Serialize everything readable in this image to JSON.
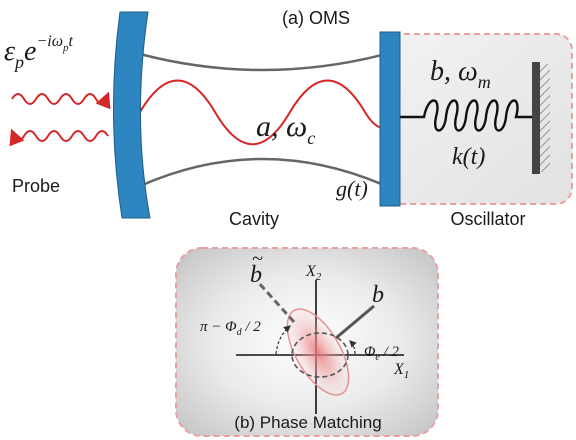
{
  "panel_a": {
    "title": "(a) OMS",
    "probe_field": "ε",
    "probe_field_sub": "p",
    "probe_exp": "e",
    "probe_exp_power": "−iω",
    "probe_exp_power_sub": "p",
    "probe_exp_power_tail": "t",
    "probe_label": "Probe",
    "cavity_label": "Cavity",
    "cavity_mode": "a, ω",
    "cavity_mode_sub": "c",
    "mirror_coupling": "g(t)",
    "oscillator_label": "Oscillator",
    "oscillator_mode": "b, ω",
    "oscillator_mode_sub": "m",
    "spring_constant": "k(t)"
  },
  "panel_b": {
    "title": "(b) Phase Matching",
    "axis_x": "X",
    "axis_x_sub": "1",
    "axis_y": "X",
    "axis_y_sub": "2",
    "vector_b": "b",
    "vector_b_tilde": "b",
    "tilde_mark": "~",
    "angle_left": "π − Φ",
    "angle_left_sub": "d",
    "angle_left_tail": " / 2",
    "angle_right": "Φ",
    "angle_right_sub": "e",
    "angle_right_tail": " / 2"
  },
  "colors": {
    "mirror": "#2e86c1",
    "wave": "#d62728",
    "frame_border": "#e8a0a0",
    "vector": "#555555",
    "ellipse": "#e89090"
  }
}
